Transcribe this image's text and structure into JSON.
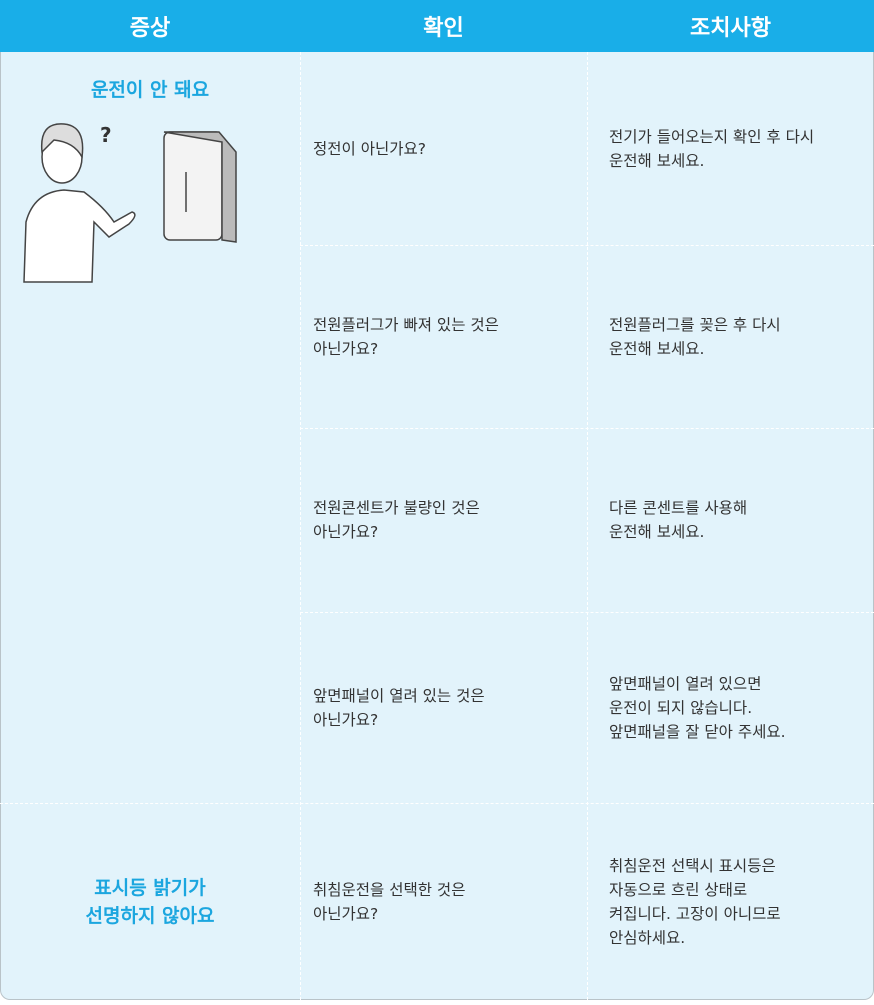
{
  "header": {
    "columns": [
      "증상",
      "확인",
      "조치사항"
    ]
  },
  "groups": [
    {
      "symptom": [
        "운전이 안 돼요"
      ],
      "illustration_mark": "?",
      "rows": [
        {
          "check": [
            "정전이 아닌가요?"
          ],
          "action": [
            "전기가 들어오는지 확인 후 다시",
            "운전해 보세요."
          ]
        },
        {
          "check": [
            "전원플러그가 빠져 있는 것은",
            "아닌가요?"
          ],
          "action": [
            "전원플러그를 꽂은 후 다시",
            "운전해 보세요."
          ]
        },
        {
          "check": [
            "전원콘센트가 불량인 것은",
            "아닌가요?"
          ],
          "action": [
            "다른 콘센트를 사용해",
            "운전해 보세요."
          ]
        },
        {
          "check": [
            "앞면패널이 열려 있는 것은",
            "아닌가요?"
          ],
          "action": [
            "앞면패널이 열려 있으면",
            "운전이 되지 않습니다.",
            "앞면패널을 잘 닫아 주세요."
          ]
        }
      ]
    },
    {
      "symptom": [
        "표시등 밝기가",
        "선명하지 않아요"
      ],
      "rows": [
        {
          "check": [
            "취침운전을 선택한 것은",
            "아닌가요?"
          ],
          "action": [
            "취침운전 선택시 표시등은",
            "자동으로 흐린 상태로",
            "켜집니다. 고장이 아니므로",
            "안심하세요."
          ]
        }
      ]
    }
  ]
}
